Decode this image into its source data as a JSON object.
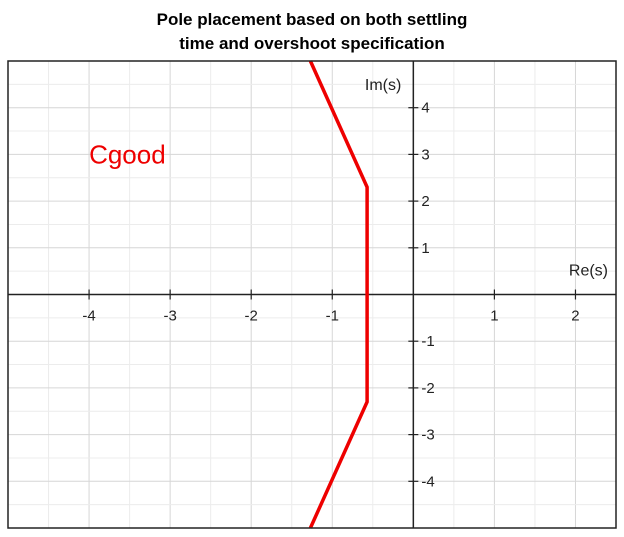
{
  "chart_data": {
    "type": "line",
    "title_lines": [
      "Pole placement based on both settling",
      "time and overshoot specification"
    ],
    "xlabel": "Re(s)",
    "ylabel": "Im(s)",
    "xlim": [
      -5,
      2.5
    ],
    "ylim": [
      -5,
      5
    ],
    "x_ticks": [
      -4,
      -3,
      -2,
      -1,
      1,
      2
    ],
    "y_ticks": [
      4,
      3,
      2,
      1,
      -1,
      -2,
      -3,
      -4
    ],
    "grid": true,
    "series": [
      {
        "color": "#ee0000",
        "x": [
          -1.27,
          -0.57,
          -0.57,
          -1.27
        ],
        "y": [
          5.0,
          2.3,
          -2.3,
          -5.0
        ]
      }
    ],
    "annotations": [
      {
        "text": "Cgood",
        "x": -4.0,
        "y": 3.0,
        "color": "#ee0000"
      }
    ]
  }
}
